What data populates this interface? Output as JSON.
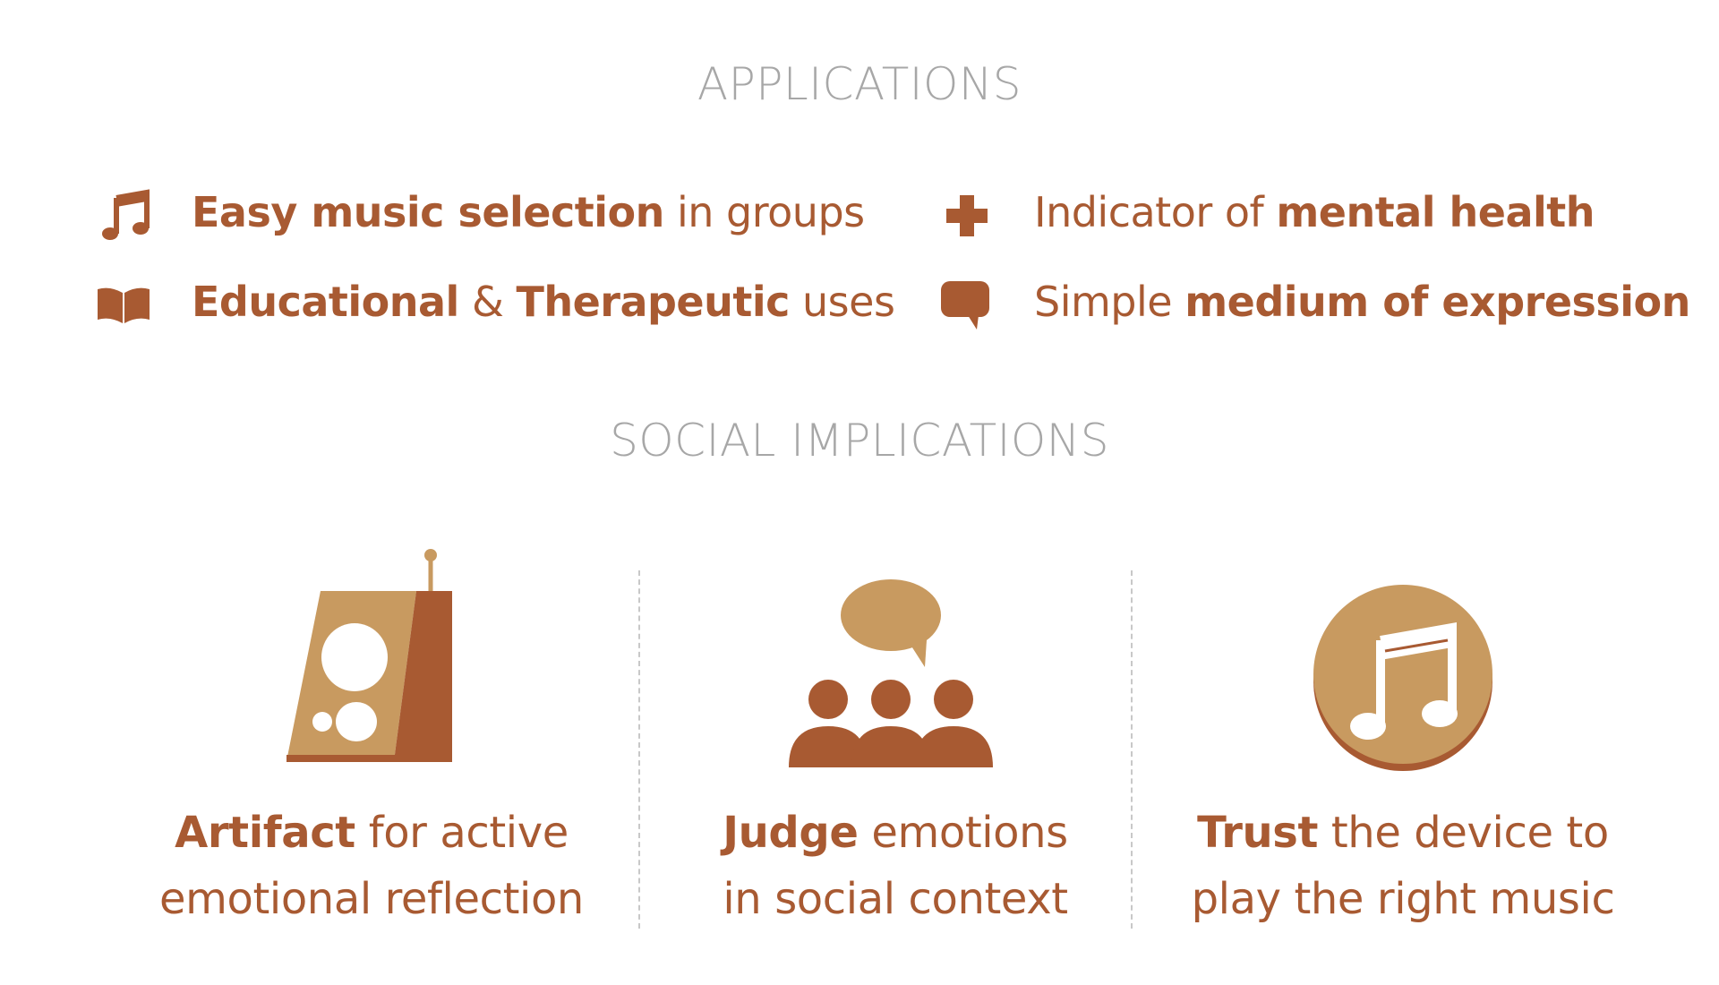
{
  "applications": {
    "title": "APPLICATIONS",
    "items": [
      {
        "icon": "music-note-icon",
        "parts": [
          {
            "text": "Easy music selection",
            "bold": true
          },
          {
            "text": " in groups",
            "bold": false
          }
        ]
      },
      {
        "icon": "book-icon",
        "parts": [
          {
            "text": "Educational",
            "bold": true
          },
          {
            "text": " & ",
            "bold": false
          },
          {
            "text": "Therapeutic",
            "bold": true
          },
          {
            "text": " uses",
            "bold": false
          }
        ]
      },
      {
        "icon": "plus-icon",
        "parts": [
          {
            "text": "Indicator of ",
            "bold": false
          },
          {
            "text": "mental health",
            "bold": true
          }
        ]
      },
      {
        "icon": "speech-bubble-icon",
        "parts": [
          {
            "text": "Simple ",
            "bold": false
          },
          {
            "text": "medium of expression",
            "bold": true
          }
        ]
      }
    ]
  },
  "social": {
    "title": "SOCIAL IMPLICATIONS",
    "columns": [
      {
        "icon": "radio-device-icon",
        "line1": [
          {
            "text": "Artifact",
            "bold": true
          },
          {
            "text": " for active",
            "bold": false
          }
        ],
        "line2": "emotional reflection"
      },
      {
        "icon": "group-speech-icon",
        "line1": [
          {
            "text": "Judge",
            "bold": true
          },
          {
            "text": " emotions",
            "bold": false
          }
        ],
        "line2": "in social context"
      },
      {
        "icon": "music-disc-icon",
        "line1": [
          {
            "text": "Trust",
            "bold": true
          },
          {
            "text": " the device to",
            "bold": false
          }
        ],
        "line2": "play the right music"
      }
    ]
  },
  "colors": {
    "accent": "#a85a32",
    "light_accent": "#c89a60",
    "heading": "#a7a7a7"
  }
}
